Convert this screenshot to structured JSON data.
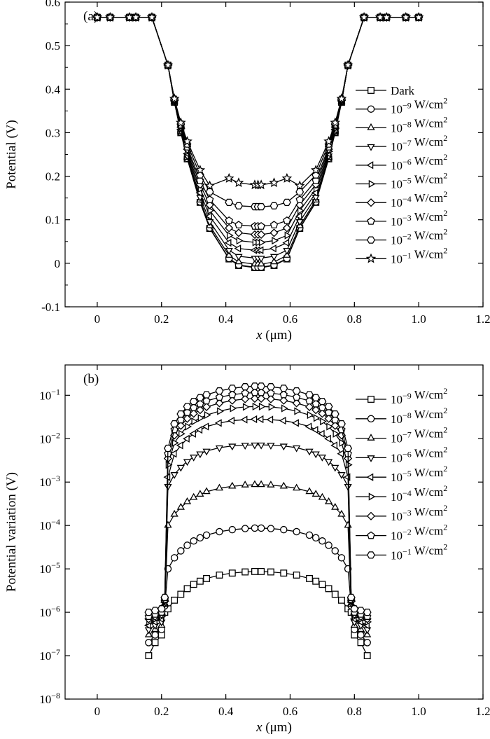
{
  "chart_data": [
    {
      "panel_label": "(a)",
      "type": "line",
      "xlabel": "x (μm)",
      "ylabel": "Potential (V)",
      "xlim": [
        -0.1,
        1.2
      ],
      "ylim": [
        -0.1,
        0.6
      ],
      "xticks": [
        "0",
        "0.2",
        "0.4",
        "0.6",
        "0.8",
        "1.0",
        "1.2"
      ],
      "yticks": [
        "-0.1",
        "0",
        "0.1",
        "0.2",
        "0.3",
        "0.4",
        "0.5",
        "0.6"
      ],
      "grid": false,
      "legend_position": "right",
      "x": [
        0,
        0.04,
        0.1,
        0.12,
        0.17,
        0.22,
        0.24,
        0.26,
        0.28,
        0.32,
        0.35,
        0.41,
        0.44,
        0.49,
        0.5,
        0.51,
        0.55,
        0.59,
        0.63,
        0.68,
        0.72,
        0.74,
        0.76,
        0.78,
        0.83,
        0.88,
        0.9,
        0.96,
        1.0
      ],
      "series": [
        {
          "name": "Dark",
          "marker": "square",
          "values": [
            0.565,
            0.565,
            0.565,
            0.565,
            0.565,
            0.455,
            0.37,
            0.3,
            0.24,
            0.14,
            0.08,
            0.01,
            -0.005,
            -0.01,
            -0.01,
            -0.01,
            -0.005,
            0.01,
            0.08,
            0.14,
            0.24,
            0.3,
            0.37,
            0.455,
            0.565,
            0.565,
            0.565,
            0.565,
            0.565
          ]
        },
        {
          "name": "10⁻⁹ W/cm²",
          "marker": "circle",
          "values": [
            0.565,
            0.565,
            0.565,
            0.565,
            0.565,
            0.455,
            0.371,
            0.301,
            0.241,
            0.141,
            0.081,
            0.011,
            -0.004,
            -0.009,
            -0.009,
            -0.009,
            -0.004,
            0.011,
            0.081,
            0.141,
            0.241,
            0.301,
            0.371,
            0.455,
            0.565,
            0.565,
            0.565,
            0.565,
            0.565
          ]
        },
        {
          "name": "10⁻⁸ W/cm²",
          "marker": "triangle-up",
          "values": [
            0.565,
            0.565,
            0.565,
            0.565,
            0.565,
            0.455,
            0.371,
            0.302,
            0.243,
            0.145,
            0.086,
            0.018,
            0.003,
            -0.002,
            -0.002,
            -0.002,
            0.003,
            0.018,
            0.086,
            0.145,
            0.243,
            0.302,
            0.371,
            0.455,
            0.565,
            0.565,
            0.565,
            0.565,
            0.565
          ]
        },
        {
          "name": "10⁻⁷ W/cm²",
          "marker": "triangle-down",
          "values": [
            0.565,
            0.565,
            0.565,
            0.565,
            0.565,
            0.455,
            0.372,
            0.304,
            0.247,
            0.152,
            0.096,
            0.03,
            0.016,
            0.012,
            0.012,
            0.012,
            0.016,
            0.03,
            0.096,
            0.152,
            0.247,
            0.304,
            0.372,
            0.455,
            0.565,
            0.565,
            0.565,
            0.565,
            0.565
          ]
        },
        {
          "name": "10⁻⁶ W/cm²",
          "marker": "triangle-left",
          "values": [
            0.565,
            0.565,
            0.565,
            0.565,
            0.565,
            0.455,
            0.373,
            0.307,
            0.252,
            0.162,
            0.108,
            0.047,
            0.034,
            0.03,
            0.03,
            0.03,
            0.034,
            0.047,
            0.108,
            0.162,
            0.252,
            0.307,
            0.373,
            0.455,
            0.565,
            0.565,
            0.565,
            0.565,
            0.565
          ]
        },
        {
          "name": "10⁻⁵ W/cm²",
          "marker": "triangle-right",
          "values": [
            0.565,
            0.565,
            0.565,
            0.565,
            0.565,
            0.455,
            0.374,
            0.31,
            0.257,
            0.171,
            0.121,
            0.064,
            0.052,
            0.048,
            0.048,
            0.048,
            0.052,
            0.064,
            0.121,
            0.171,
            0.257,
            0.31,
            0.374,
            0.455,
            0.565,
            0.565,
            0.565,
            0.565,
            0.565
          ]
        },
        {
          "name": "10⁻⁴ W/cm²",
          "marker": "diamond",
          "values": [
            0.565,
            0.565,
            0.565,
            0.565,
            0.565,
            0.455,
            0.375,
            0.313,
            0.262,
            0.181,
            0.134,
            0.081,
            0.07,
            0.066,
            0.066,
            0.066,
            0.07,
            0.081,
            0.134,
            0.181,
            0.262,
            0.313,
            0.375,
            0.455,
            0.565,
            0.565,
            0.565,
            0.565,
            0.565
          ]
        },
        {
          "name": "10⁻³ W/cm²",
          "marker": "pentagon",
          "values": [
            0.565,
            0.565,
            0.565,
            0.565,
            0.565,
            0.455,
            0.376,
            0.316,
            0.267,
            0.19,
            0.146,
            0.098,
            0.088,
            0.085,
            0.085,
            0.085,
            0.088,
            0.098,
            0.146,
            0.19,
            0.267,
            0.316,
            0.376,
            0.455,
            0.565,
            0.565,
            0.565,
            0.565,
            0.565
          ]
        },
        {
          "name": "10⁻² W/cm²",
          "marker": "hexagon",
          "values": [
            0.565,
            0.565,
            0.565,
            0.565,
            0.565,
            0.455,
            0.377,
            0.32,
            0.274,
            0.203,
            0.164,
            0.14,
            0.132,
            0.13,
            0.13,
            0.13,
            0.132,
            0.14,
            0.164,
            0.203,
            0.274,
            0.32,
            0.377,
            0.455,
            0.565,
            0.565,
            0.565,
            0.565,
            0.565
          ]
        },
        {
          "name": "10⁻¹ W/cm²",
          "marker": "star",
          "values": [
            0.565,
            0.565,
            0.565,
            0.565,
            0.565,
            0.455,
            0.378,
            0.323,
            0.28,
            0.214,
            0.178,
            0.195,
            0.185,
            0.18,
            0.18,
            0.18,
            0.185,
            0.195,
            0.178,
            0.214,
            0.28,
            0.323,
            0.378,
            0.455,
            0.565,
            0.565,
            0.565,
            0.565,
            0.565
          ]
        }
      ]
    },
    {
      "panel_label": "(b)",
      "type": "line",
      "yscale": "log",
      "xlabel": "x (μm)",
      "ylabel": "Potential variation (V)",
      "xlim": [
        -0.1,
        1.2
      ],
      "ylim": [
        1e-08,
        0.5
      ],
      "xticks": [
        "0",
        "0.2",
        "0.4",
        "0.6",
        "0.8",
        "1.0",
        "1.2"
      ],
      "yticks": [
        "10⁻¹",
        "10⁻²",
        "10⁻³",
        "10⁻⁴",
        "10⁻⁵",
        "10⁻⁶",
        "10⁻⁷",
        "10⁻⁸"
      ],
      "grid": false,
      "legend_position": "right",
      "x": [
        0.16,
        0.18,
        0.2,
        0.21,
        0.22,
        0.24,
        0.26,
        0.28,
        0.3,
        0.32,
        0.34,
        0.38,
        0.42,
        0.46,
        0.49,
        0.51,
        0.54,
        0.58,
        0.62,
        0.66,
        0.68,
        0.7,
        0.72,
        0.74,
        0.76,
        0.78,
        0.79,
        0.8,
        0.82,
        0.84
      ],
      "series": [
        {
          "name": "10⁻⁹ W/cm²",
          "marker": "square",
          "values": [
            1e-07,
            2e-07,
            3e-07,
            1e-06,
            1.2e-06,
            1.9e-06,
            2.6e-06,
            3.5e-06,
            4.4e-06,
            5.2e-06,
            6e-06,
            7.2e-06,
            8e-06,
            8.5e-06,
            8.7e-06,
            8.7e-06,
            8.5e-06,
            8e-06,
            7.2e-06,
            6e-06,
            5.2e-06,
            4.4e-06,
            3.5e-06,
            2.6e-06,
            1.9e-06,
            1.2e-06,
            1e-06,
            3e-07,
            2e-07,
            1e-07
          ]
        },
        {
          "name": "10⁻⁸ W/cm²",
          "marker": "circle",
          "values": [
            2e-07,
            3e-07,
            4e-07,
            1.4e-06,
            1e-05,
            1.8e-05,
            2.6e-05,
            3.5e-05,
            4.4e-05,
            5.2e-05,
            6e-05,
            7.2e-05,
            8e-05,
            8.5e-05,
            8.7e-05,
            8.7e-05,
            8.5e-05,
            8e-05,
            7.2e-05,
            6e-05,
            5.2e-05,
            4.4e-05,
            3.5e-05,
            2.6e-05,
            1.8e-05,
            1e-05,
            1.4e-06,
            4e-07,
            3e-07,
            2e-07
          ]
        },
        {
          "name": "10⁻⁷ W/cm²",
          "marker": "triangle-up",
          "values": [
            3e-07,
            4e-07,
            5e-07,
            1.5e-06,
            0.0001,
            0.00018,
            0.00026,
            0.00035,
            0.00044,
            0.00052,
            0.0006,
            0.00072,
            0.0008,
            0.00085,
            0.00087,
            0.00087,
            0.00085,
            0.0008,
            0.00072,
            0.0006,
            0.00052,
            0.00044,
            0.00035,
            0.00026,
            0.00018,
            0.0001,
            1.5e-06,
            5e-07,
            4e-07,
            3e-07
          ]
        },
        {
          "name": "10⁻⁶ W/cm²",
          "marker": "triangle-down",
          "values": [
            4e-07,
            5e-07,
            6e-07,
            1.6e-06,
            0.0008,
            0.0015,
            0.0022,
            0.003,
            0.0038,
            0.0045,
            0.0052,
            0.0062,
            0.0068,
            0.0071,
            0.0072,
            0.0072,
            0.0071,
            0.0068,
            0.0062,
            0.0052,
            0.0045,
            0.0038,
            0.003,
            0.0022,
            0.0015,
            0.0008,
            1.6e-06,
            6e-07,
            5e-07,
            4e-07
          ]
        },
        {
          "name": "10⁻⁵ W/cm²",
          "marker": "triangle-left",
          "values": [
            5e-07,
            6e-07,
            7e-07,
            1.7e-06,
            0.0013,
            0.0045,
            0.007,
            0.01,
            0.013,
            0.016,
            0.019,
            0.023,
            0.026,
            0.0275,
            0.028,
            0.028,
            0.0275,
            0.026,
            0.023,
            0.019,
            0.016,
            0.013,
            0.01,
            0.007,
            0.0045,
            0.0013,
            1.7e-06,
            7e-07,
            6e-07,
            5e-07
          ]
        },
        {
          "name": "10⁻⁴ W/cm²",
          "marker": "triangle-right",
          "values": [
            6e-07,
            7e-07,
            8e-07,
            1.8e-06,
            0.0025,
            0.008,
            0.013,
            0.019,
            0.025,
            0.03,
            0.035,
            0.043,
            0.05,
            0.054,
            0.055,
            0.055,
            0.054,
            0.05,
            0.043,
            0.035,
            0.03,
            0.025,
            0.019,
            0.013,
            0.008,
            0.0025,
            1.8e-06,
            8e-07,
            7e-07,
            6e-07
          ]
        },
        {
          "name": "10⁻³ W/cm²",
          "marker": "diamond",
          "values": [
            7e-07,
            8e-07,
            9e-07,
            1.9e-06,
            0.0035,
            0.012,
            0.02,
            0.029,
            0.038,
            0.046,
            0.054,
            0.066,
            0.076,
            0.082,
            0.084,
            0.084,
            0.082,
            0.076,
            0.066,
            0.054,
            0.046,
            0.038,
            0.029,
            0.02,
            0.012,
            0.0035,
            1.9e-06,
            9e-07,
            8e-07,
            7e-07
          ]
        },
        {
          "name": "10⁻² W/cm²",
          "marker": "pentagon",
          "values": [
            8e-07,
            9e-07,
            1e-06,
            2e-06,
            0.0045,
            0.016,
            0.027,
            0.04,
            0.052,
            0.063,
            0.074,
            0.09,
            0.103,
            0.112,
            0.115,
            0.115,
            0.112,
            0.103,
            0.09,
            0.074,
            0.063,
            0.052,
            0.04,
            0.027,
            0.016,
            0.0045,
            2e-06,
            1e-06,
            9e-07,
            8e-07
          ]
        },
        {
          "name": "10⁻¹ W/cm²",
          "marker": "hexagon",
          "values": [
            1e-06,
            1.1e-06,
            1.2e-06,
            2.2e-06,
            0.006,
            0.022,
            0.037,
            0.055,
            0.072,
            0.088,
            0.103,
            0.126,
            0.145,
            0.157,
            0.162,
            0.162,
            0.157,
            0.145,
            0.126,
            0.103,
            0.088,
            0.072,
            0.055,
            0.037,
            0.022,
            0.006,
            2.2e-06,
            1.2e-06,
            1.1e-06,
            1e-06
          ]
        }
      ]
    }
  ]
}
